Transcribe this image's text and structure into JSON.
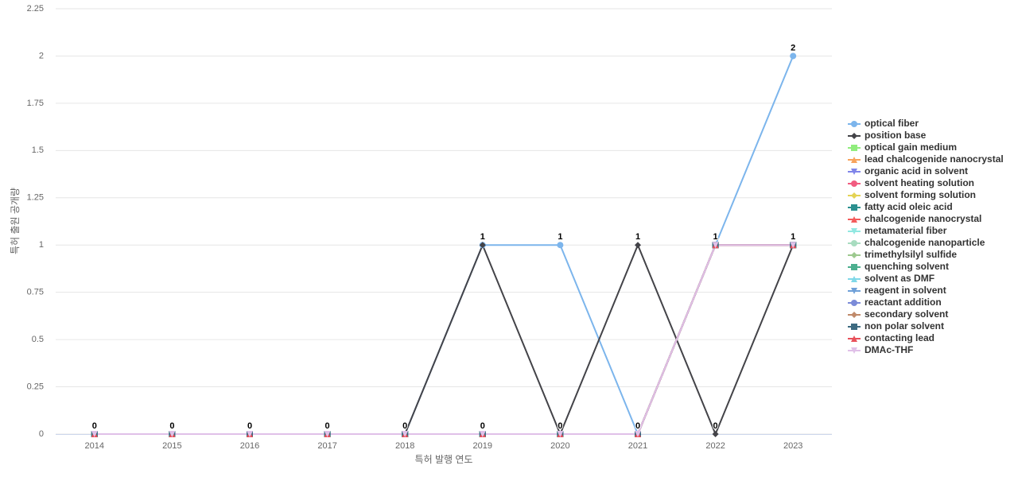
{
  "chart_data": {
    "type": "line",
    "x_label": "특허 발행 연도",
    "y_label": "특허 출원 공개량",
    "categories": [
      "2014",
      "2015",
      "2016",
      "2017",
      "2018",
      "2019",
      "2020",
      "2021",
      "2022",
      "2023"
    ],
    "ylim": [
      0,
      2.25
    ],
    "yticks": [
      0,
      0.25,
      0.5,
      0.75,
      1,
      1.25,
      1.5,
      1.75,
      2,
      2.25
    ],
    "grid": true,
    "legend": "right",
    "series": [
      {
        "name": "optical fiber",
        "color": "#7cb5ec",
        "values": [
          0,
          0,
          0,
          0,
          0,
          1,
          1,
          0,
          1,
          2
        ]
      },
      {
        "name": "position base",
        "color": "#434348",
        "values": [
          0,
          0,
          0,
          0,
          0,
          1,
          0,
          1,
          0,
          1
        ]
      },
      {
        "name": "optical gain medium",
        "color": "#90ed7d",
        "values": [
          0,
          0,
          0,
          0,
          0,
          0,
          0,
          0,
          1,
          1
        ]
      },
      {
        "name": "lead chalcogenide nanocrystal",
        "color": "#f7a35c",
        "values": [
          0,
          0,
          0,
          0,
          0,
          0,
          0,
          0,
          1,
          1
        ]
      },
      {
        "name": "organic acid in solvent",
        "color": "#8085e9",
        "values": [
          0,
          0,
          0,
          0,
          0,
          0,
          0,
          0,
          1,
          1
        ]
      },
      {
        "name": "solvent heating solution",
        "color": "#f15c80",
        "values": [
          0,
          0,
          0,
          0,
          0,
          0,
          0,
          0,
          1,
          1
        ]
      },
      {
        "name": "solvent forming solution",
        "color": "#e4d354",
        "values": [
          0,
          0,
          0,
          0,
          0,
          0,
          0,
          0,
          1,
          1
        ]
      },
      {
        "name": "fatty acid oleic acid",
        "color": "#2b908f",
        "values": [
          0,
          0,
          0,
          0,
          0,
          0,
          0,
          0,
          1,
          1
        ]
      },
      {
        "name": "chalcogenide nanocrystal",
        "color": "#f45b5b",
        "values": [
          0,
          0,
          0,
          0,
          0,
          0,
          0,
          0,
          1,
          1
        ]
      },
      {
        "name": "metamaterial fiber",
        "color": "#91e8e1",
        "values": [
          0,
          0,
          0,
          0,
          0,
          0,
          0,
          0,
          1,
          1
        ]
      },
      {
        "name": "chalcogenide nanoparticle",
        "color": "#a8dcc0",
        "values": [
          0,
          0,
          0,
          0,
          0,
          0,
          0,
          0,
          1,
          1
        ]
      },
      {
        "name": "trimethylsilyl sulfide",
        "color": "#9dc98f",
        "values": [
          0,
          0,
          0,
          0,
          0,
          0,
          0,
          0,
          1,
          1
        ]
      },
      {
        "name": "quenching solvent",
        "color": "#4caf8f",
        "values": [
          0,
          0,
          0,
          0,
          0,
          0,
          0,
          0,
          1,
          1
        ]
      },
      {
        "name": "solvent as DMF",
        "color": "#80d8e8",
        "values": [
          0,
          0,
          0,
          0,
          0,
          0,
          0,
          0,
          1,
          1
        ]
      },
      {
        "name": "reagent in solvent",
        "color": "#6fa0d8",
        "values": [
          0,
          0,
          0,
          0,
          0,
          0,
          0,
          0,
          1,
          1
        ]
      },
      {
        "name": "reactant addition",
        "color": "#7b8bd8",
        "values": [
          0,
          0,
          0,
          0,
          0,
          0,
          0,
          0,
          1,
          1
        ]
      },
      {
        "name": "secondary solvent",
        "color": "#c08a6a",
        "values": [
          0,
          0,
          0,
          0,
          0,
          0,
          0,
          0,
          1,
          1
        ]
      },
      {
        "name": "non polar solvent",
        "color": "#3d6a80",
        "values": [
          0,
          0,
          0,
          0,
          0,
          0,
          0,
          0,
          1,
          1
        ]
      },
      {
        "name": "contacting lead",
        "color": "#e8505a",
        "values": [
          0,
          0,
          0,
          0,
          0,
          0,
          0,
          0,
          1,
          1
        ]
      },
      {
        "name": "DMAc-THF",
        "color": "#e0c0e8",
        "values": [
          0,
          0,
          0,
          0,
          0,
          0,
          0,
          0,
          1,
          1
        ]
      }
    ]
  }
}
